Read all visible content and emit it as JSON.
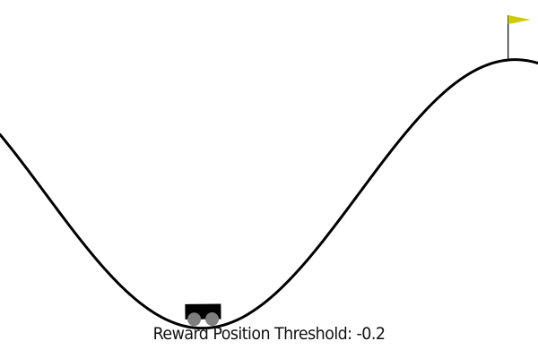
{
  "env": {
    "name": "MountainCar",
    "car_position": -0.52,
    "goal_position": 0.5,
    "position_range": [
      -1.2,
      0.6
    ]
  },
  "overlay": {
    "reward_threshold_label": "Reward Position Threshold: -0.2"
  },
  "colors": {
    "background": "#ffffff",
    "track": "#000000",
    "car_body": "#000000",
    "wheels": "#7f7f7f",
    "flag": "#cccc00",
    "flag_pole": "#000000"
  },
  "icons": {
    "car": "cart-icon",
    "flag": "goal-flag-icon"
  }
}
